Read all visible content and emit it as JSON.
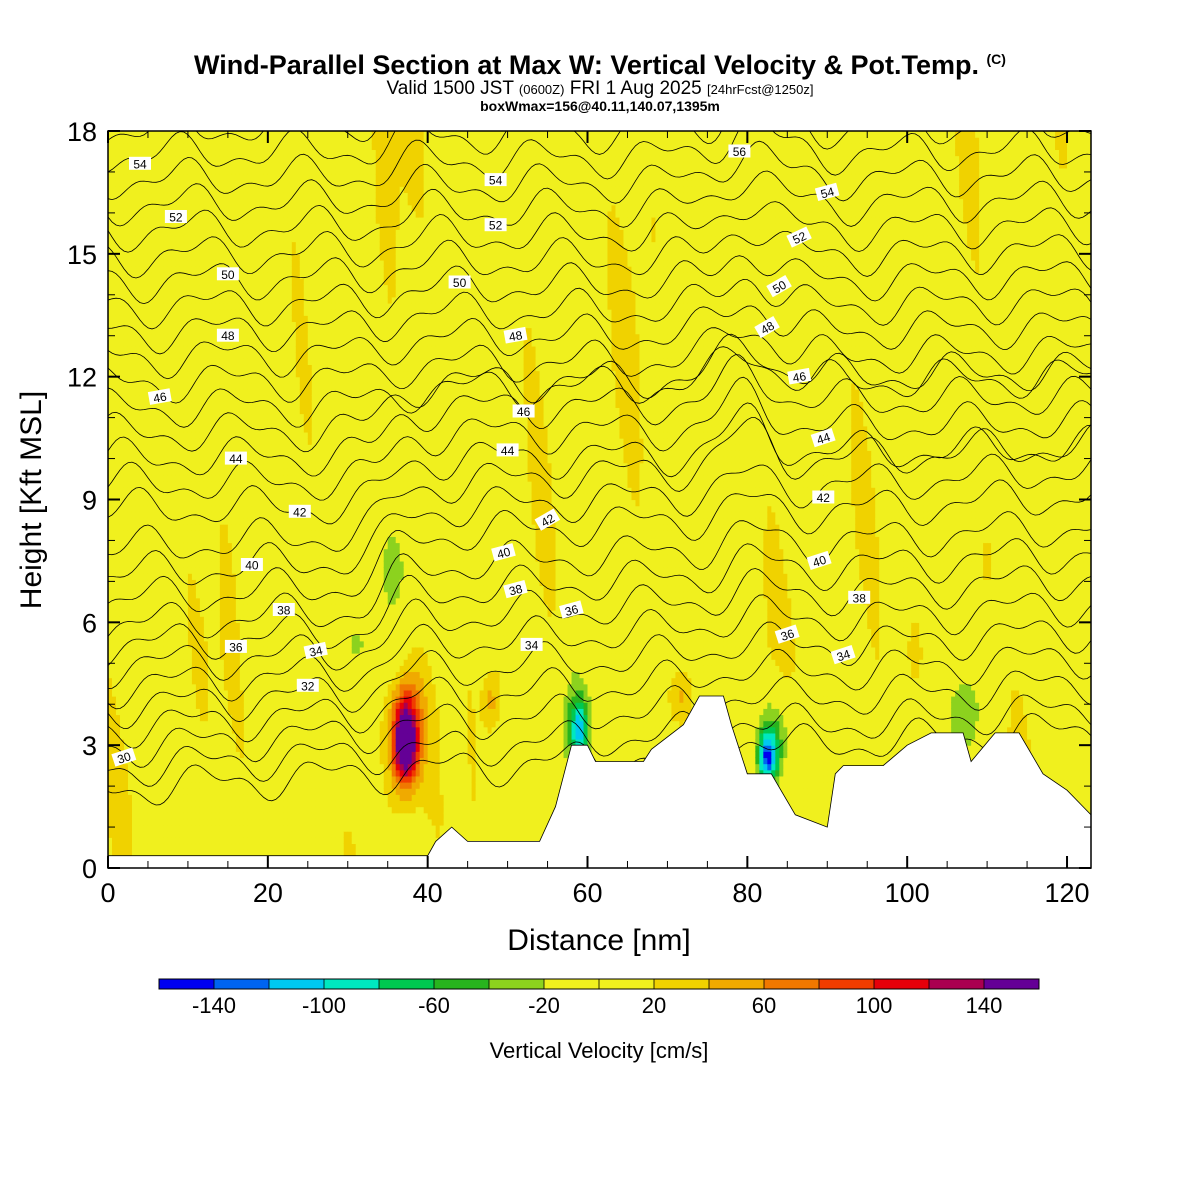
{
  "title": {
    "main": "Wind-Parallel Section at Max W: Vertical Velocity & Pot.Temp.",
    "copyright": "(C)",
    "valid_prefix": "Valid 1500 JST",
    "valid_z": "(0600Z)",
    "valid_date": "FRI 1 Aug 2025",
    "forecast": "[24hrFcst@1250z]",
    "boxwmax": "boxWmax=156@40.11,140.07,1395m"
  },
  "chart_data": {
    "type": "heatmap",
    "xlabel": "Distance [nm]",
    "ylabel": "Height [Kft MSL]",
    "xlim": [
      0,
      123
    ],
    "ylim": [
      0,
      18
    ],
    "x_ticks": [
      0,
      20,
      40,
      60,
      80,
      100,
      120
    ],
    "y_ticks": [
      0,
      3,
      6,
      9,
      12,
      15,
      18
    ],
    "colorbar": {
      "label": "Vertical Velocity [cm/s]",
      "tick_labels": [
        "-140",
        "-100",
        "-60",
        "-20",
        "20",
        "60",
        "100",
        "140"
      ],
      "bins": [
        -160,
        -140,
        -120,
        -100,
        -80,
        -60,
        -40,
        -20,
        0,
        20,
        40,
        60,
        80,
        100,
        120,
        140,
        160
      ],
      "colors": [
        "#0000f0",
        "#0064f0",
        "#00c8f0",
        "#00e8c0",
        "#00c850",
        "#28b41e",
        "#8cd21e",
        "#f0f01e",
        "#f0f01e",
        "#f0d200",
        "#f0aa00",
        "#f07800",
        "#f03c00",
        "#e6000a",
        "#aa0050",
        "#640096"
      ]
    },
    "theta_contours": {
      "levels": [
        30,
        32,
        34,
        36,
        38,
        40,
        42,
        44,
        46,
        48,
        50,
        52,
        54,
        56
      ],
      "labels": [
        {
          "text": "30",
          "x": 2,
          "y": 2.7,
          "angle": -18
        },
        {
          "text": "32",
          "x": 25,
          "y": 4.45,
          "angle": 0
        },
        {
          "text": "34",
          "x": 26,
          "y": 5.3,
          "angle": -12
        },
        {
          "text": "34",
          "x": 53,
          "y": 5.45,
          "angle": 0
        },
        {
          "text": "34",
          "x": 92,
          "y": 5.2,
          "angle": -18
        },
        {
          "text": "36",
          "x": 16,
          "y": 5.4,
          "angle": 0
        },
        {
          "text": "36",
          "x": 58,
          "y": 6.3,
          "angle": -15
        },
        {
          "text": "36",
          "x": 85,
          "y": 5.7,
          "angle": -18
        },
        {
          "text": "38",
          "x": 22,
          "y": 6.3,
          "angle": 0
        },
        {
          "text": "38",
          "x": 51,
          "y": 6.8,
          "angle": -15
        },
        {
          "text": "38",
          "x": 94,
          "y": 6.6,
          "angle": 0
        },
        {
          "text": "40",
          "x": 18,
          "y": 7.4,
          "angle": 0
        },
        {
          "text": "40",
          "x": 49.5,
          "y": 7.7,
          "angle": -15
        },
        {
          "text": "40",
          "x": 89,
          "y": 7.5,
          "angle": -18
        },
        {
          "text": "42",
          "x": 24,
          "y": 8.7,
          "angle": 0
        },
        {
          "text": "42",
          "x": 55,
          "y": 8.5,
          "angle": -30
        },
        {
          "text": "42",
          "x": 89.5,
          "y": 9.05,
          "angle": 0
        },
        {
          "text": "44",
          "x": 16,
          "y": 10.0,
          "angle": 0
        },
        {
          "text": "44",
          "x": 50,
          "y": 10.2,
          "angle": 0
        },
        {
          "text": "44",
          "x": 89.5,
          "y": 10.5,
          "angle": -18
        },
        {
          "text": "46",
          "x": 6.5,
          "y": 11.5,
          "angle": -10
        },
        {
          "text": "46",
          "x": 52,
          "y": 11.15,
          "angle": 0
        },
        {
          "text": "46",
          "x": 86.5,
          "y": 12.0,
          "angle": -10
        },
        {
          "text": "48",
          "x": 15,
          "y": 13.0,
          "angle": 0
        },
        {
          "text": "48",
          "x": 51,
          "y": 13.0,
          "angle": -10
        },
        {
          "text": "48",
          "x": 82.5,
          "y": 13.2,
          "angle": -30
        },
        {
          "text": "50",
          "x": 15,
          "y": 14.5,
          "angle": 0
        },
        {
          "text": "50",
          "x": 44,
          "y": 14.3,
          "angle": 0
        },
        {
          "text": "50",
          "x": 84,
          "y": 14.2,
          "angle": -30
        },
        {
          "text": "52",
          "x": 8.5,
          "y": 15.9,
          "angle": 0
        },
        {
          "text": "52",
          "x": 48.5,
          "y": 15.7,
          "angle": 0
        },
        {
          "text": "52",
          "x": 86.5,
          "y": 15.4,
          "angle": -25
        },
        {
          "text": "54",
          "x": 4,
          "y": 17.2,
          "angle": 0
        },
        {
          "text": "54",
          "x": 48.5,
          "y": 16.8,
          "angle": 0
        },
        {
          "text": "54",
          "x": 90,
          "y": 16.5,
          "angle": -15
        },
        {
          "text": "56",
          "x": 79,
          "y": 17.5,
          "angle": 0
        }
      ]
    },
    "terrain": [
      [
        0,
        0.3
      ],
      [
        40,
        0.3
      ],
      [
        41,
        0.65
      ],
      [
        43,
        1.0
      ],
      [
        45,
        0.65
      ],
      [
        54,
        0.65
      ],
      [
        56,
        1.5
      ],
      [
        58,
        3.0
      ],
      [
        60,
        3.0
      ],
      [
        61,
        2.6
      ],
      [
        67,
        2.6
      ],
      [
        68,
        2.9
      ],
      [
        72,
        3.5
      ],
      [
        74,
        4.2
      ],
      [
        77,
        4.2
      ],
      [
        78,
        3.5
      ],
      [
        80,
        2.3
      ],
      [
        83,
        2.3
      ],
      [
        86,
        1.3
      ],
      [
        90,
        1.0
      ],
      [
        91,
        2.3
      ],
      [
        92,
        2.5
      ],
      [
        97,
        2.5
      ],
      [
        100,
        3.0
      ],
      [
        103,
        3.3
      ],
      [
        107,
        3.3
      ],
      [
        108,
        2.6
      ],
      [
        111,
        3.3
      ],
      [
        114,
        3.3
      ],
      [
        117,
        2.3
      ],
      [
        120,
        1.9
      ],
      [
        122,
        1.5
      ],
      [
        123,
        1.3
      ]
    ]
  }
}
